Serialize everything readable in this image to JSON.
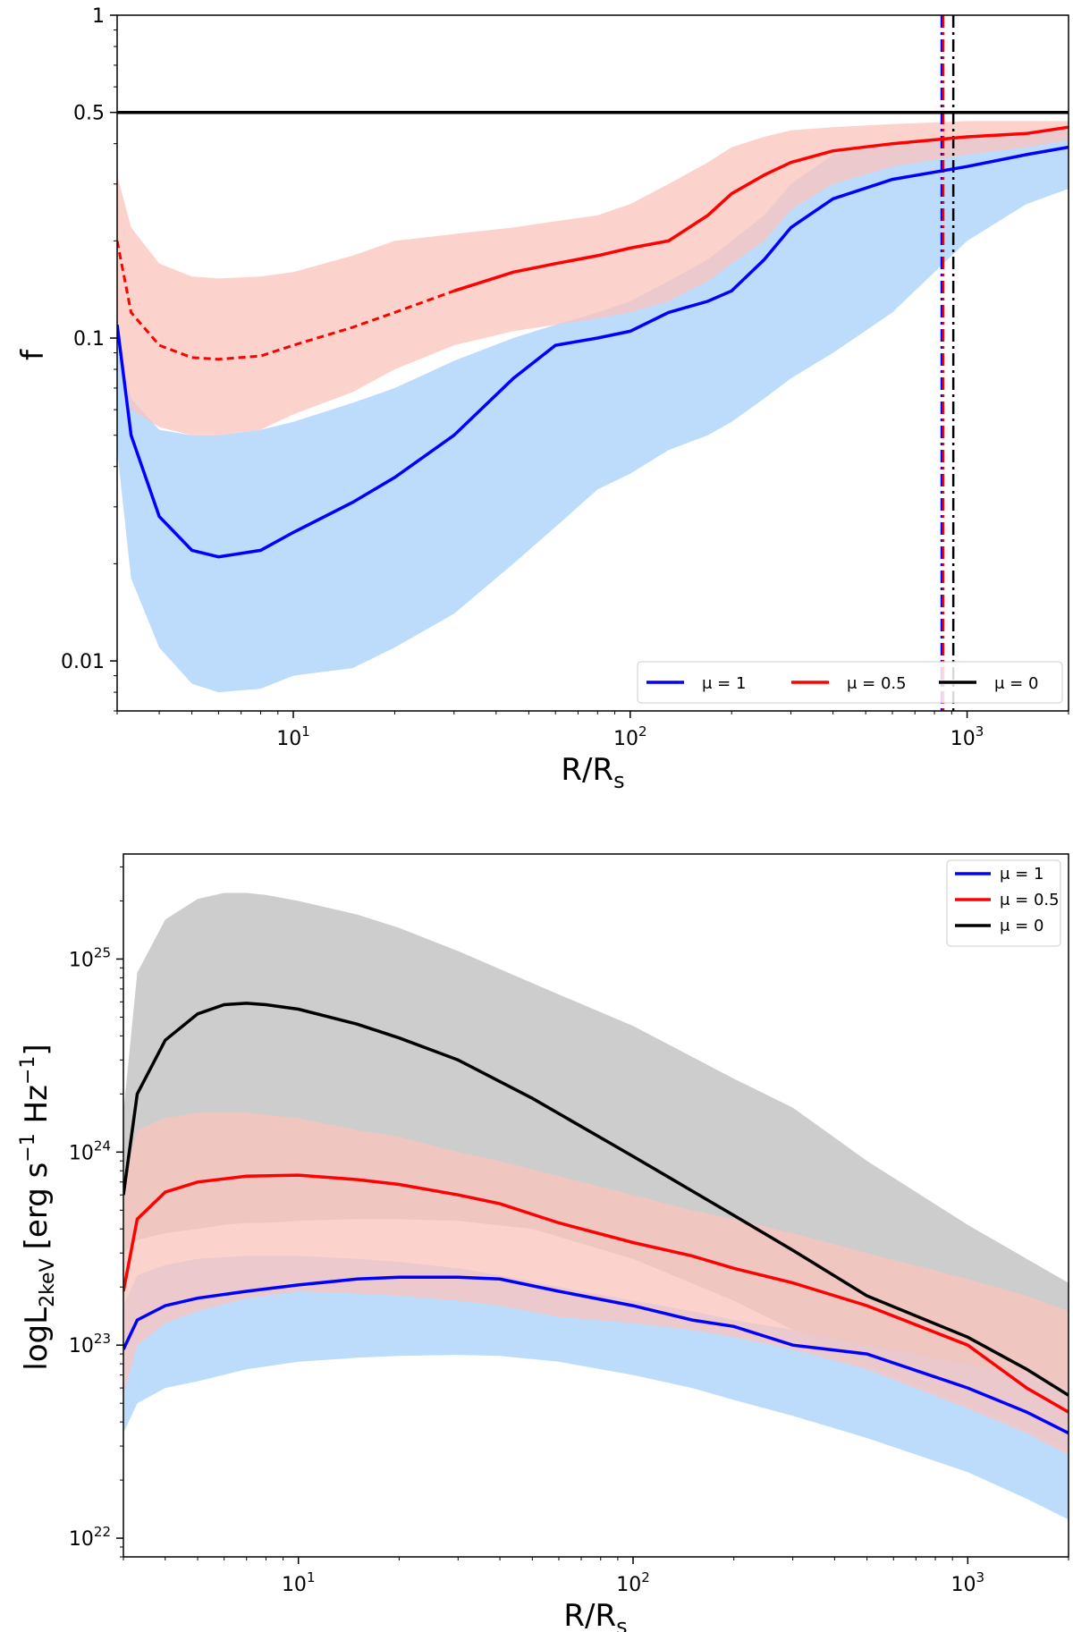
{
  "chart_data": [
    {
      "type": "line",
      "title": "",
      "xlabel": "R/R",
      "xlabel_sub": "s",
      "ylabel": "f",
      "xscale": "log",
      "yscale": "log",
      "xlim": [
        3,
        2000
      ],
      "ylim": [
        0.007,
        1
      ],
      "x_ticks": [
        {
          "value": 10,
          "base": "10",
          "exp": "1"
        },
        {
          "value": 100,
          "base": "10",
          "exp": "2"
        },
        {
          "value": 1000,
          "base": "10",
          "exp": "3"
        }
      ],
      "y_ticks": [
        {
          "value": 0.01,
          "label": "0.01"
        },
        {
          "value": 0.1,
          "label": "0.1"
        },
        {
          "value": 0.5,
          "label": "0.5"
        },
        {
          "value": 1,
          "label": "1"
        }
      ],
      "reference_lines": [
        {
          "name": "f = 0.5",
          "orientation": "horizontal",
          "value": 0.5,
          "color": "#000000"
        },
        {
          "name": "blue transition radius",
          "orientation": "vertical",
          "value": 840,
          "color": "#0000ff"
        },
        {
          "name": "red transition radius",
          "orientation": "vertical",
          "value": 850,
          "color": "#ff0000"
        },
        {
          "name": "black transition radius",
          "orientation": "vertical",
          "value": 910,
          "color": "#000000"
        }
      ],
      "legend_position": "bottom-right",
      "legend_orientation": "horizontal",
      "series": [
        {
          "name": "μ = 1",
          "color": "#0000ff",
          "band_color": "#b1d6fb",
          "x": [
            3.0,
            3.3,
            4.0,
            5.0,
            6.0,
            8.0,
            10,
            15,
            20,
            30,
            45,
            60,
            80,
            100,
            130,
            170,
            200,
            250,
            300,
            400,
            600,
            1000,
            1500,
            2000
          ],
          "y": [
            0.11,
            0.05,
            0.028,
            0.022,
            0.021,
            0.022,
            0.025,
            0.031,
            0.037,
            0.05,
            0.075,
            0.095,
            0.1,
            0.105,
            0.12,
            0.13,
            0.14,
            0.175,
            0.22,
            0.27,
            0.31,
            0.34,
            0.37,
            0.39
          ],
          "lower": [
            0.045,
            0.018,
            0.011,
            0.0085,
            0.008,
            0.0082,
            0.009,
            0.0095,
            0.011,
            0.014,
            0.02,
            0.026,
            0.034,
            0.038,
            0.045,
            0.05,
            0.055,
            0.065,
            0.075,
            0.09,
            0.12,
            0.2,
            0.26,
            0.29
          ],
          "upper": [
            0.1,
            0.065,
            0.052,
            0.05,
            0.05,
            0.052,
            0.055,
            0.063,
            0.07,
            0.085,
            0.1,
            0.11,
            0.12,
            0.13,
            0.15,
            0.175,
            0.2,
            0.24,
            0.3,
            0.37,
            0.4,
            0.42,
            0.43,
            0.44
          ],
          "dashed_x_range": null
        },
        {
          "name": "μ = 0.5",
          "color": "#ff0000",
          "band_color": "#fbc3bc",
          "x": [
            3.0,
            3.3,
            4.0,
            5.0,
            6.0,
            8.0,
            10,
            15,
            20,
            30,
            45,
            60,
            80,
            100,
            130,
            170,
            200,
            250,
            300,
            400,
            600,
            1000,
            1500,
            2000
          ],
          "y": [
            0.2,
            0.12,
            0.095,
            0.087,
            0.086,
            0.088,
            0.095,
            0.108,
            0.12,
            0.14,
            0.16,
            0.17,
            0.18,
            0.19,
            0.2,
            0.24,
            0.28,
            0.32,
            0.35,
            0.38,
            0.4,
            0.42,
            0.43,
            0.45
          ],
          "lower": [
            0.1,
            0.06,
            0.053,
            0.05,
            0.05,
            0.052,
            0.058,
            0.068,
            0.08,
            0.095,
            0.105,
            0.11,
            0.115,
            0.12,
            0.13,
            0.15,
            0.17,
            0.2,
            0.25,
            0.3,
            0.34,
            0.37,
            0.39,
            0.41
          ],
          "upper": [
            0.32,
            0.22,
            0.17,
            0.155,
            0.153,
            0.155,
            0.16,
            0.18,
            0.2,
            0.21,
            0.22,
            0.23,
            0.24,
            0.26,
            0.3,
            0.35,
            0.39,
            0.42,
            0.44,
            0.45,
            0.46,
            0.47,
            0.47,
            0.47
          ],
          "dashed_x_range": [
            3.0,
            30
          ]
        },
        {
          "name": "μ = 0",
          "color": "#000000",
          "band_color": "#cacaca",
          "x": [
            3.0,
            2000
          ],
          "y": [
            0.5,
            0.5
          ],
          "lower": null,
          "upper": null,
          "dashed_x_range": null
        }
      ]
    },
    {
      "type": "line",
      "title": "",
      "xlabel": "R/R",
      "xlabel_sub": "s",
      "ylabel": "logL",
      "ylabel_sub": "2keV",
      "ylabel_units": "[erg s",
      "ylabel_units_exp1": "−1",
      "ylabel_units_mid": " Hz",
      "ylabel_units_exp2": "−1",
      "ylabel_units_end": "]",
      "xscale": "log",
      "yscale": "log",
      "xlim": [
        3,
        2000
      ],
      "ylim": [
        8e+21,
        3.5e+25
      ],
      "x_ticks": [
        {
          "value": 10,
          "base": "10",
          "exp": "1"
        },
        {
          "value": 100,
          "base": "10",
          "exp": "2"
        },
        {
          "value": 1000,
          "base": "10",
          "exp": "3"
        }
      ],
      "y_ticks": [
        {
          "value": 1e+22,
          "base": "10",
          "exp": "22"
        },
        {
          "value": 1e+23,
          "base": "10",
          "exp": "23"
        },
        {
          "value": 1e+24,
          "base": "10",
          "exp": "24"
        },
        {
          "value": 1e+25,
          "base": "10",
          "exp": "25"
        }
      ],
      "legend_position": "top-right",
      "legend_orientation": "vertical",
      "series": [
        {
          "name": "μ = 1",
          "color": "#0000ff",
          "band_color": "#b1d6fb",
          "x": [
            3.0,
            3.3,
            4.0,
            5.0,
            7.0,
            10,
            15,
            20,
            30,
            40,
            60,
            100,
            150,
            200,
            300,
            500,
            1000,
            1500,
            2000
          ],
          "y": [
            9.5e+22,
            1.35e+23,
            1.6e+23,
            1.75e+23,
            1.9e+23,
            2.05e+23,
            2.2e+23,
            2.25e+23,
            2.25e+23,
            2.2e+23,
            1.9e+23,
            1.6e+23,
            1.35e+23,
            1.25e+23,
            1e+23,
            9e+22,
            6e+22,
            4.5e+22,
            3.5e+22
          ],
          "lower": [
            3.5e+22,
            5e+22,
            6e+22,
            6.5e+22,
            7.5e+22,
            8.2e+22,
            8.6e+22,
            8.8e+22,
            8.9e+22,
            8.8e+22,
            8.2e+22,
            7e+22,
            6e+22,
            5.2e+22,
            4.3e+22,
            3.3e+22,
            2.2e+22,
            1.6e+22,
            1.25e+22
          ],
          "upper": [
            1.6e+23,
            2.3e+23,
            2.6e+23,
            2.8e+23,
            2.9e+23,
            2.9e+23,
            2.8e+23,
            2.7e+23,
            2.5e+23,
            2.3e+23,
            2e+23,
            1.7e+23,
            1.5e+23,
            1.35e+23,
            1.2e+23,
            1e+23,
            8e+22,
            7e+22,
            6e+22
          ]
        },
        {
          "name": "μ = 0.5",
          "color": "#ff0000",
          "band_color": "#fbc3bc",
          "x": [
            3.0,
            3.3,
            4.0,
            5.0,
            7.0,
            10,
            15,
            20,
            30,
            40,
            60,
            100,
            150,
            200,
            300,
            500,
            1000,
            1500,
            2000
          ],
          "y": [
            1.9e+23,
            4.5e+23,
            6.2e+23,
            7e+23,
            7.5e+23,
            7.6e+23,
            7.2e+23,
            6.8e+23,
            6e+23,
            5.4e+23,
            4.3e+23,
            3.4e+23,
            2.9e+23,
            2.5e+23,
            2.1e+23,
            1.6e+23,
            1e+23,
            6e+22,
            4.5e+22
          ],
          "lower": [
            5.5e+22,
            1e+23,
            1.3e+23,
            1.5e+23,
            1.75e+23,
            1.9e+23,
            1.85e+23,
            1.8e+23,
            1.7e+23,
            1.6e+23,
            1.4e+23,
            1.3e+23,
            1.2e+23,
            1.1e+23,
            9.5e+22,
            7.5e+22,
            4.7e+22,
            3.5e+22,
            2.7e+22
          ],
          "upper": [
            7e+23,
            1.3e+24,
            1.5e+24,
            1.6e+24,
            1.6e+24,
            1.5e+24,
            1.3e+24,
            1.2e+24,
            1e+24,
            9e+23,
            7.5e+23,
            6e+23,
            5e+23,
            4.5e+23,
            3.8e+23,
            3e+23,
            2.2e+23,
            1.8e+23,
            1.5e+23
          ]
        },
        {
          "name": "μ = 0",
          "color": "#000000",
          "band_color": "#cacaca",
          "x": [
            3.0,
            3.3,
            4.0,
            5.0,
            6.0,
            7.0,
            8.0,
            10,
            15,
            20,
            30,
            50,
            100,
            200,
            300,
            500,
            1000,
            1500,
            2000
          ],
          "y": [
            6e+23,
            2e+24,
            3.8e+24,
            5.2e+24,
            5.8e+24,
            5.9e+24,
            5.8e+24,
            5.5e+24,
            4.6e+24,
            3.9e+24,
            3e+24,
            1.9e+24,
            9.5e+23,
            4.7e+23,
            3.1e+23,
            1.8e+23,
            1.1e+23,
            7.5e+22,
            5.5e+22
          ],
          "lower": [
            3e+23,
            3.5e+23,
            3.8e+23,
            4e+23,
            4.2e+23,
            4.3e+23,
            4.3e+23,
            4.4e+23,
            4.5e+23,
            4.5e+23,
            4.4e+23,
            4e+23,
            2.8e+23,
            1.7e+23,
            1.2e+23,
            8e+22,
            5e+22,
            3.7e+22,
            2.9e+22
          ],
          "upper": [
            1.6e+24,
            8.5e+24,
            1.6e+25,
            2.05e+25,
            2.2e+25,
            2.2e+25,
            2.15e+25,
            2e+25,
            1.7e+25,
            1.45e+25,
            1.1e+25,
            7.5e+24,
            4.5e+24,
            2.4e+24,
            1.7e+24,
            9e+23,
            4.2e+23,
            2.8e+23,
            2.1e+23
          ]
        }
      ]
    }
  ]
}
